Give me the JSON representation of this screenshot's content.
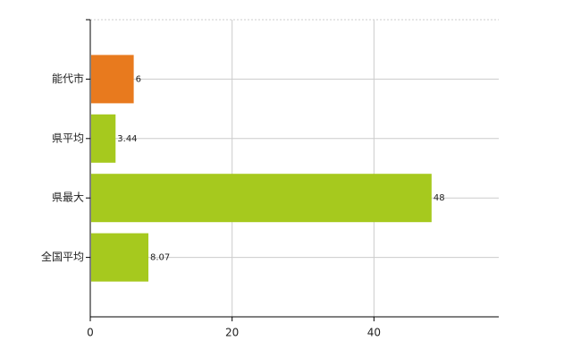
{
  "chart_data": {
    "type": "hbar",
    "categories": [
      "能代市",
      "県平均",
      "県最大",
      "全国平均"
    ],
    "values": [
      6,
      3.44,
      48,
      8.07
    ],
    "colors": [
      "#e87a1e",
      "#a6c91e",
      "#a6c91e",
      "#a6c91e"
    ],
    "xlim": [
      0,
      57.6
    ],
    "xticks": [
      0,
      20,
      40
    ],
    "grid": true
  }
}
